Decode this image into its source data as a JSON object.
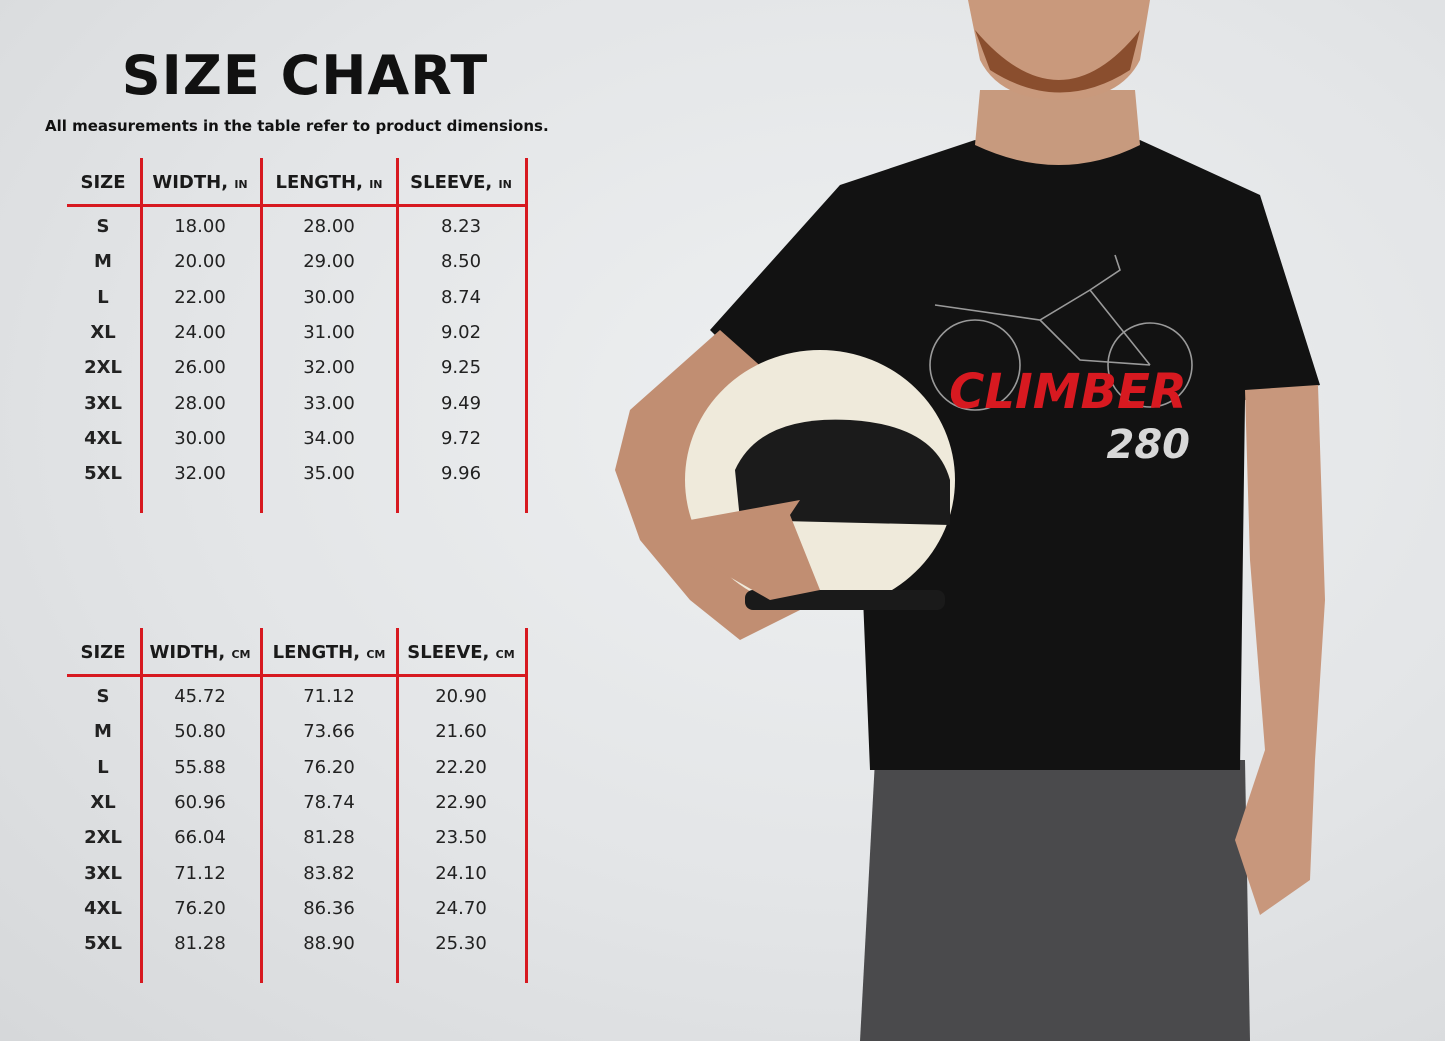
{
  "title": "SIZE CHART",
  "subtitle": "All measurements in the table refer to product dimensions.",
  "tables": [
    {
      "unit": "IN",
      "headers": [
        "SIZE",
        "WIDTH,",
        "LENGTH,",
        "SLEEVE,"
      ],
      "rows": [
        [
          "S",
          "18.00",
          "28.00",
          "8.23"
        ],
        [
          "M",
          "20.00",
          "29.00",
          "8.50"
        ],
        [
          "L",
          "22.00",
          "30.00",
          "8.74"
        ],
        [
          "XL",
          "24.00",
          "31.00",
          "9.02"
        ],
        [
          "2XL",
          "26.00",
          "32.00",
          "9.25"
        ],
        [
          "3XL",
          "28.00",
          "33.00",
          "9.49"
        ],
        [
          "4XL",
          "30.00",
          "34.00",
          "9.72"
        ],
        [
          "5XL",
          "32.00",
          "35.00",
          "9.96"
        ]
      ]
    },
    {
      "unit": "CM",
      "headers": [
        "SIZE",
        "WIDTH,",
        "LENGTH,",
        "SLEEVE,"
      ],
      "rows": [
        [
          "S",
          "45.72",
          "71.12",
          "20.90"
        ],
        [
          "M",
          "50.80",
          "73.66",
          "21.60"
        ],
        [
          "L",
          "55.88",
          "76.20",
          "22.20"
        ],
        [
          "XL",
          "60.96",
          "78.74",
          "22.90"
        ],
        [
          "2XL",
          "66.04",
          "81.28",
          "23.50"
        ],
        [
          "3XL",
          "71.12",
          "83.82",
          "24.10"
        ],
        [
          "4XL",
          "76.20",
          "86.36",
          "24.70"
        ],
        [
          "5XL",
          "81.28",
          "88.90",
          "25.30"
        ]
      ]
    }
  ],
  "shirt_print": {
    "name": "CLIMBER",
    "number": "280"
  },
  "colors": {
    "accent": "#d71920",
    "shirt": "#121212",
    "helmet": "#efeadb"
  }
}
